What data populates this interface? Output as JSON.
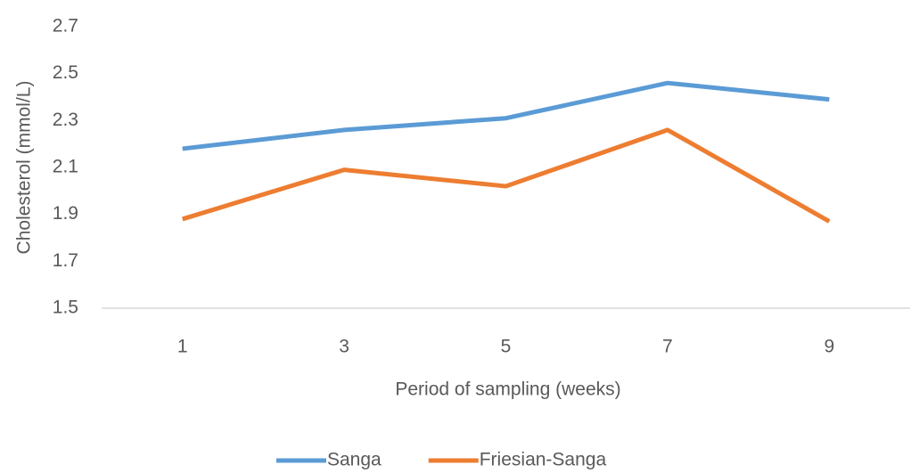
{
  "chart_data": {
    "type": "line",
    "x_label": "Period of sampling (weeks)",
    "y_label": "Cholesterol (mmol/L)",
    "categories": [
      "1",
      "3",
      "5",
      "7",
      "9"
    ],
    "series": [
      {
        "name": "Sanga",
        "color": "#5b9bd5",
        "values": [
          2.18,
          2.26,
          2.31,
          2.46,
          2.39
        ]
      },
      {
        "name": "Friesian-Sanga",
        "color": "#ed7d31",
        "values": [
          1.88,
          2.09,
          2.02,
          2.26,
          1.87
        ]
      }
    ],
    "ylim": [
      1.5,
      2.7
    ],
    "yticks": [
      1.5,
      1.7,
      1.9,
      2.1,
      2.3,
      2.5,
      2.7
    ],
    "grid": false,
    "legend": "bottom"
  }
}
